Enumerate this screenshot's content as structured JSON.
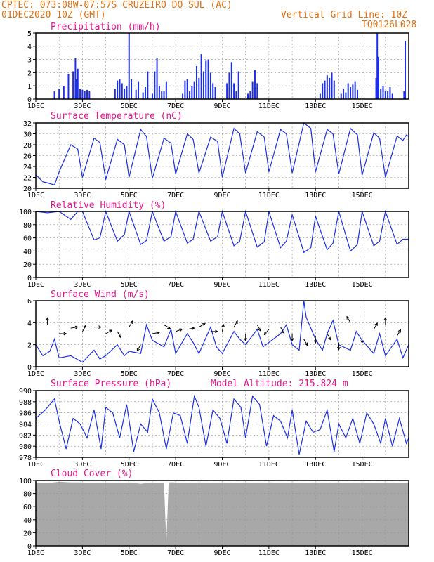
{
  "header": {
    "line1": "CPTEC:   073:08W-07:57S  CRUZEIRO DO SUL (AC)",
    "line2": "01DEC2020 10Z (GMT)",
    "grid_note": "Vertical Grid Line: 10Z",
    "code": "TQ0126L028"
  },
  "colors": {
    "header": "#e07010",
    "title": "#e8158c",
    "series": "#1c2fe6",
    "grid": "#909090",
    "cloud": "#a8a8a8"
  },
  "x_ticks": [
    "1DEC",
    "3DEC",
    "5DEC",
    "7DEC",
    "9DEC",
    "11DEC",
    "13DEC",
    "15DEC"
  ],
  "chart_data": [
    {
      "type": "bar",
      "id": "precip",
      "title": "Precipitation (mm/h)",
      "ylim": [
        0,
        5
      ],
      "yticks": [
        0,
        1,
        2,
        3,
        4,
        5
      ],
      "x": [
        0.8,
        1.0,
        1.2,
        1.4,
        1.6,
        1.7,
        1.75,
        1.8,
        1.9,
        2.0,
        2.1,
        2.2,
        2.3,
        3.4,
        3.5,
        3.6,
        3.7,
        3.8,
        3.9,
        4.0,
        4.1,
        4.3,
        4.4,
        4.6,
        4.7,
        4.8,
        5.0,
        5.1,
        5.2,
        5.3,
        5.4,
        5.5,
        5.6,
        6.3,
        6.4,
        6.5,
        6.6,
        6.7,
        6.8,
        6.9,
        7.0,
        7.1,
        7.2,
        7.3,
        7.4,
        7.5,
        7.6,
        7.7,
        8.2,
        8.3,
        8.4,
        8.5,
        8.6,
        8.7,
        9.1,
        9.2,
        9.3,
        9.4,
        9.5,
        12.2,
        12.3,
        12.4,
        12.5,
        12.6,
        12.7,
        12.8,
        13.1,
        13.2,
        13.3,
        13.4,
        13.5,
        13.6,
        13.7,
        13.8,
        14.6,
        14.65,
        14.7,
        14.8,
        14.9,
        15.0,
        15.1,
        15.2,
        15.3,
        15.8,
        15.85
      ],
      "values": [
        0.6,
        0.8,
        1.0,
        1.9,
        2.1,
        3.1,
        1.5,
        2.3,
        0.8,
        0.7,
        0.6,
        0.7,
        0.6,
        0.8,
        1.4,
        1.5,
        1.2,
        0.8,
        1.0,
        5.0,
        1.5,
        0.7,
        1.3,
        0.5,
        0.9,
        2.1,
        0.4,
        2.1,
        3.1,
        1.0,
        0.6,
        0.6,
        1.3,
        0.4,
        1.4,
        1.5,
        0.6,
        1.0,
        1.3,
        2.5,
        1.6,
        3.4,
        2.1,
        2.9,
        3.0,
        2.0,
        1.2,
        0.9,
        1.2,
        2.0,
        2.8,
        1.2,
        0.6,
        2.1,
        0.4,
        0.6,
        1.3,
        2.2,
        1.2,
        0.4,
        1.2,
        1.4,
        1.8,
        1.6,
        2.0,
        1.4,
        0.4,
        0.8,
        0.5,
        1.2,
        0.9,
        1.1,
        1.3,
        0.7,
        1.6,
        5.0,
        3.2,
        0.8,
        1.0,
        0.6,
        0.6,
        0.9,
        0.4,
        0.6,
        4.4
      ]
    },
    {
      "type": "line",
      "id": "temp",
      "title": "Surface Temperature (nC)",
      "ylim": [
        20,
        32
      ],
      "yticks": [
        20,
        22,
        24,
        26,
        28,
        30,
        32
      ],
      "x": [
        0,
        0.3,
        0.5,
        0.8,
        1.0,
        1.5,
        1.8,
        2.0,
        2.5,
        2.75,
        3.0,
        3.5,
        3.8,
        4.0,
        4.5,
        4.75,
        5.0,
        5.5,
        5.8,
        6.0,
        6.5,
        6.75,
        7.0,
        7.5,
        7.8,
        8.0,
        8.5,
        8.75,
        9.0,
        9.5,
        9.8,
        10.0,
        10.5,
        10.75,
        11.0,
        11.5,
        11.8,
        12.0,
        12.5,
        12.75,
        13.0,
        13.5,
        13.8,
        14.0,
        14.5,
        14.75,
        15.0,
        15.5,
        15.75,
        15.9,
        16.0
      ],
      "values": [
        22.5,
        21.2,
        21.0,
        20.6,
        23.0,
        28.0,
        27.2,
        22.0,
        29.2,
        28.4,
        21.6,
        29.0,
        28.0,
        22.0,
        30.8,
        29.5,
        21.8,
        29.2,
        28.3,
        22.6,
        30.0,
        29.0,
        22.8,
        29.4,
        28.6,
        22.0,
        31.0,
        30.0,
        22.8,
        30.4,
        29.4,
        23.0,
        30.8,
        30.0,
        22.8,
        32.0,
        31.0,
        23.0,
        30.8,
        30.0,
        22.6,
        31.0,
        29.8,
        22.4,
        30.2,
        29.2,
        22.0,
        29.6,
        28.8,
        29.8,
        29.5
      ]
    },
    {
      "type": "line",
      "id": "rh",
      "title": "Relative Humidity (%)",
      "ylim": [
        0,
        100
      ],
      "yticks": [
        0,
        20,
        40,
        60,
        80,
        100
      ],
      "x": [
        0,
        0.5,
        1.0,
        1.5,
        1.8,
        2.0,
        2.5,
        2.75,
        3.0,
        3.5,
        3.8,
        4.0,
        4.5,
        4.75,
        5.0,
        5.5,
        5.8,
        6.0,
        6.5,
        6.75,
        7.0,
        7.5,
        7.8,
        8.0,
        8.5,
        8.75,
        9.0,
        9.5,
        9.8,
        10.0,
        10.5,
        10.75,
        11.0,
        11.5,
        11.8,
        12.0,
        12.5,
        12.75,
        13.0,
        13.5,
        13.8,
        14.0,
        14.5,
        14.75,
        15.0,
        15.5,
        15.75,
        16.0
      ],
      "values": [
        100,
        98,
        100,
        88,
        100,
        100,
        57,
        60,
        100,
        55,
        65,
        100,
        50,
        56,
        100,
        55,
        62,
        100,
        52,
        58,
        100,
        55,
        62,
        100,
        48,
        55,
        100,
        46,
        54,
        100,
        45,
        55,
        95,
        38,
        45,
        93,
        42,
        52,
        100,
        40,
        50,
        100,
        48,
        55,
        100,
        50,
        58,
        58
      ]
    },
    {
      "type": "line",
      "id": "wind",
      "title": "Surface Wind (m/s)",
      "ylim": [
        0,
        6
      ],
      "yticks": [
        0,
        2,
        4,
        6
      ],
      "x": [
        0,
        0.3,
        0.6,
        0.8,
        1.0,
        1.5,
        2.0,
        2.5,
        2.75,
        3.0,
        3.5,
        3.8,
        4.0,
        4.5,
        4.75,
        5.0,
        5.5,
        5.8,
        6.0,
        6.5,
        6.75,
        7.0,
        7.5,
        7.75,
        8.0,
        8.5,
        8.75,
        9.0,
        9.5,
        9.75,
        10.0,
        10.5,
        10.75,
        11.0,
        11.3,
        11.5,
        11.6,
        12.0,
        12.3,
        12.5,
        12.75,
        13.0,
        13.5,
        13.75,
        14.0,
        14.5,
        14.75,
        15.0,
        15.5,
        15.75,
        16.0
      ],
      "values": [
        2.0,
        1.0,
        1.4,
        2.5,
        0.8,
        1.0,
        0.4,
        1.5,
        0.7,
        1.0,
        2.0,
        1.0,
        1.4,
        1.2,
        3.8,
        2.4,
        1.8,
        3.4,
        1.2,
        3.0,
        2.2,
        1.2,
        3.6,
        1.8,
        1.2,
        3.2,
        2.5,
        2.0,
        3.4,
        1.8,
        2.2,
        3.0,
        3.8,
        2.0,
        1.5,
        6.0,
        4.5,
        2.5,
        1.5,
        3.0,
        4.2,
        2.0,
        1.5,
        3.2,
        2.4,
        1.2,
        3.0,
        1.0,
        2.5,
        0.8,
        2.0
      ],
      "arrows_x": [
        0.5,
        1.0,
        1.5,
        2.0,
        2.5,
        3.0,
        3.5,
        4.0,
        4.5,
        5.0,
        5.5,
        6.0,
        6.5,
        7.0,
        7.5,
        8.0,
        8.5,
        9.0,
        9.5,
        10.0,
        10.5,
        11.0,
        11.5,
        12.0,
        12.5,
        13.0,
        13.5,
        14.0,
        14.5,
        15.0,
        15.5
      ],
      "arrows_y": [
        3.8,
        3.0,
        3.5,
        3.2,
        3.6,
        3.0,
        3.2,
        3.6,
        2.0,
        3.0,
        3.8,
        3.2,
        3.4,
        3.6,
        3.2,
        3.2,
        3.6,
        3.0,
        3.8,
        3.4,
        3.6,
        3.0,
        2.5,
        2.8,
        3.0,
        2.2,
        4.0,
        2.8,
        3.4,
        3.8,
        2.8
      ],
      "arrows_dir_deg": [
        90,
        0,
        10,
        60,
        0,
        30,
        300,
        60,
        240,
        10,
        330,
        20,
        10,
        30,
        0,
        80,
        60,
        270,
        300,
        230,
        300,
        270,
        300,
        270,
        300,
        270,
        120,
        270,
        60,
        90,
        60
      ]
    },
    {
      "type": "line",
      "id": "pres",
      "title": "Surface Pressure (hPa)",
      "subtitle": "Model Altitude: 215.824 m",
      "ylim": [
        978,
        990
      ],
      "yticks": [
        978,
        980,
        982,
        984,
        986,
        988,
        990
      ],
      "x": [
        0,
        0.4,
        0.8,
        1.0,
        1.3,
        1.6,
        1.9,
        2.2,
        2.5,
        2.8,
        3.0,
        3.3,
        3.6,
        3.9,
        4.2,
        4.5,
        4.8,
        5.0,
        5.3,
        5.6,
        5.9,
        6.2,
        6.5,
        6.8,
        7.0,
        7.3,
        7.6,
        7.9,
        8.2,
        8.5,
        8.8,
        9.0,
        9.3,
        9.6,
        9.9,
        10.2,
        10.5,
        10.8,
        11.0,
        11.3,
        11.6,
        11.9,
        12.2,
        12.5,
        12.8,
        13.0,
        13.3,
        13.6,
        13.9,
        14.2,
        14.5,
        14.8,
        15.0,
        15.3,
        15.6,
        15.9,
        16.0
      ],
      "values": [
        985,
        986.5,
        988.5,
        984.5,
        979.5,
        985,
        984,
        981.5,
        986.5,
        979.5,
        987,
        986,
        981.5,
        987.5,
        979,
        984,
        982.5,
        988.5,
        986,
        979.5,
        986,
        985.5,
        980.5,
        989,
        987,
        980,
        986.5,
        985,
        980.5,
        988.5,
        987,
        981.5,
        989,
        987.5,
        980,
        985.5,
        984.5,
        981.5,
        986.5,
        978.5,
        984.5,
        982.5,
        983,
        986.5,
        979,
        984,
        981.5,
        985,
        980.5,
        986,
        984,
        980.5,
        985,
        980,
        985,
        980.5,
        981.5
      ]
    },
    {
      "type": "area",
      "id": "cloud",
      "title": "Cloud Cover (%)",
      "ylim": [
        0,
        100
      ],
      "yticks": [
        0,
        20,
        40,
        60,
        80,
        100
      ],
      "x": [
        0,
        0.5,
        1.0,
        1.5,
        2.0,
        2.5,
        3.0,
        3.5,
        4.0,
        4.5,
        5.0,
        5.5,
        5.6,
        5.7,
        6.0,
        6.5,
        7.0,
        7.5,
        8.0,
        8.5,
        9.0,
        9.5,
        10.0,
        10.5,
        11.0,
        11.5,
        12.0,
        12.5,
        13.0,
        13.5,
        14.0,
        14.5,
        15.0,
        15.5,
        16.0
      ],
      "values": [
        97,
        96,
        98,
        97,
        97,
        96,
        97,
        96,
        97,
        95,
        97,
        96,
        3,
        97,
        97,
        96,
        97,
        96,
        97,
        96,
        97,
        96,
        97,
        96,
        97,
        96,
        97,
        96,
        97,
        96,
        97,
        96,
        97,
        96,
        97
      ]
    }
  ]
}
